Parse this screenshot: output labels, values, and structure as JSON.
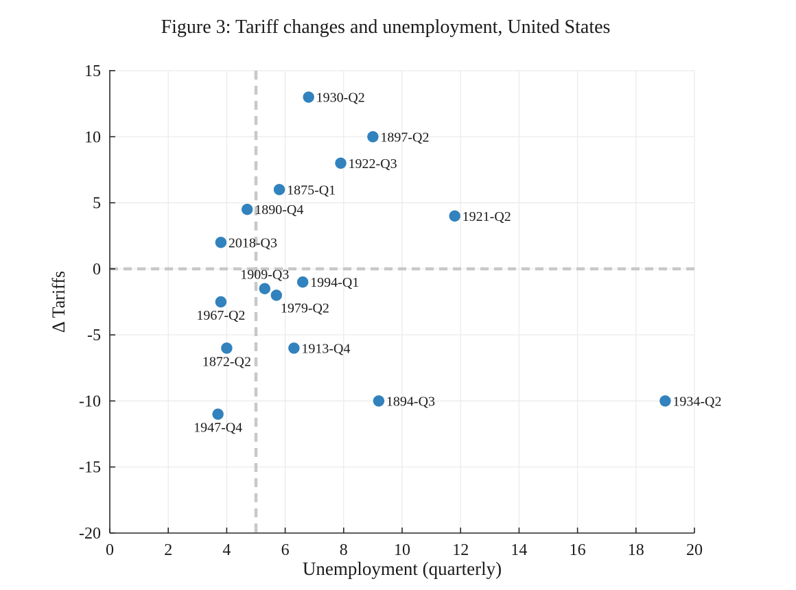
{
  "figure": {
    "background": "#ffffff"
  },
  "chart_data": {
    "type": "scatter",
    "title": "Figure 3: Tariff changes and unemployment, United States",
    "xlabel": "Unemployment (quarterly)",
    "ylabel": "Δ Tariffs",
    "xlim": [
      0,
      20
    ],
    "ylim": [
      -20,
      15
    ],
    "xticks": [
      0,
      2,
      4,
      6,
      8,
      10,
      12,
      14,
      16,
      18,
      20
    ],
    "yticks": [
      -20,
      -15,
      -10,
      -5,
      0,
      5,
      10,
      15
    ],
    "grid": true,
    "legend": "none",
    "reference_lines": {
      "vertical_x": 5,
      "horizontal_y": 0,
      "style": "dashed"
    },
    "colors": {
      "marker": "#3182bd",
      "grid": "#ebebeb",
      "reference": "#c8c8c8",
      "spine": "#262626",
      "text": "#1b1b1b"
    },
    "points": [
      {
        "label": "1930-Q2",
        "x": 6.8,
        "y": 13,
        "label_placement": "right"
      },
      {
        "label": "1897-Q2",
        "x": 9.0,
        "y": 10,
        "label_placement": "right"
      },
      {
        "label": "1922-Q3",
        "x": 7.9,
        "y": 8,
        "label_placement": "right"
      },
      {
        "label": "1875-Q1",
        "x": 5.8,
        "y": 6,
        "label_placement": "right"
      },
      {
        "label": "1890-Q4",
        "x": 4.7,
        "y": 4.5,
        "label_placement": "right"
      },
      {
        "label": "1921-Q2",
        "x": 11.8,
        "y": 4,
        "label_placement": "right"
      },
      {
        "label": "2018-Q3",
        "x": 3.8,
        "y": 2,
        "label_placement": "right"
      },
      {
        "label": "1994-Q1",
        "x": 6.6,
        "y": -1,
        "label_placement": "right"
      },
      {
        "label": "1909-Q3",
        "x": 5.3,
        "y": -1.5,
        "label_placement": "above"
      },
      {
        "label": "1979-Q2",
        "x": 5.7,
        "y": -2,
        "label_placement": "below-right"
      },
      {
        "label": "1967-Q2",
        "x": 3.8,
        "y": -2.5,
        "label_placement": "below"
      },
      {
        "label": "1913-Q4",
        "x": 6.3,
        "y": -6,
        "label_placement": "right"
      },
      {
        "label": "1872-Q2",
        "x": 4.0,
        "y": -6,
        "label_placement": "below"
      },
      {
        "label": "1894-Q3",
        "x": 9.2,
        "y": -10,
        "label_placement": "right"
      },
      {
        "label": "1934-Q2",
        "x": 19.0,
        "y": -10,
        "label_placement": "right"
      },
      {
        "label": "1947-Q4",
        "x": 3.7,
        "y": -11,
        "label_placement": "below"
      }
    ]
  }
}
